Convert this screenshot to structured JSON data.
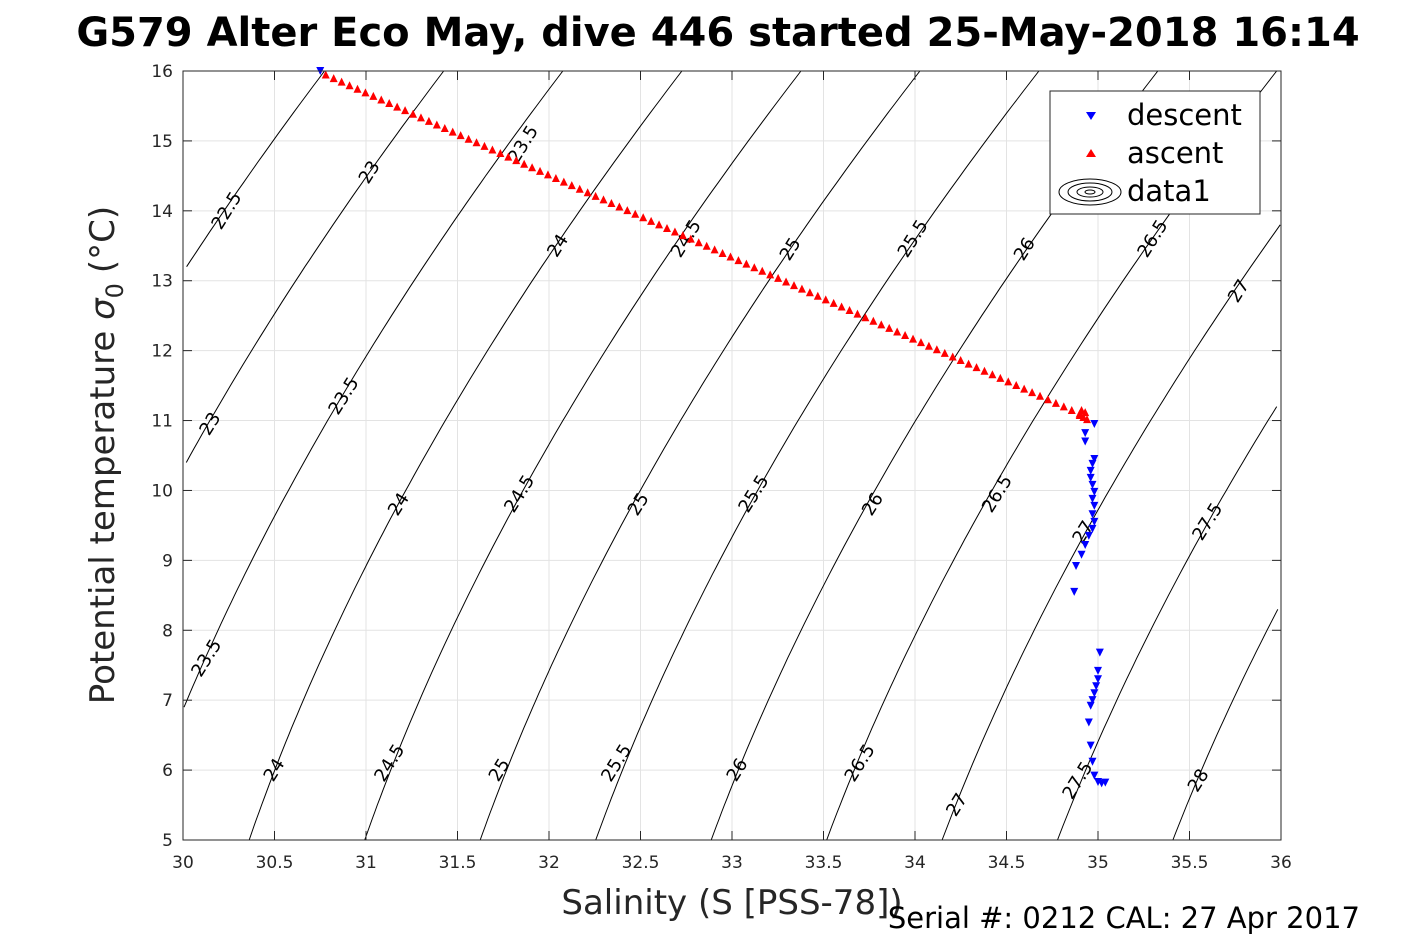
{
  "chart_data": {
    "type": "scatter",
    "title": "G579 Alter Eco May, dive 446 started 25-May-2018 16:14",
    "xlabel": "Salinity (S [PSS-78])",
    "ylabel": "Potential temperature σ₀ (°C)",
    "ylabel_main": "Potential temperature",
    "ylabel_symbol": "σ",
    "ylabel_sub": "0",
    "ylabel_unit": "(°C)",
    "xlim": [
      30,
      36
    ],
    "ylim": [
      5,
      16
    ],
    "xticks": [
      30,
      30.5,
      31,
      31.5,
      32,
      32.5,
      33,
      33.5,
      34,
      34.5,
      35,
      35.5,
      36
    ],
    "xtick_labels": [
      "30",
      "30.5",
      "31",
      "31.5",
      "32",
      "32.5",
      "33",
      "33.5",
      "34",
      "34.5",
      "35",
      "35.5",
      "36"
    ],
    "yticks": [
      5,
      6,
      7,
      8,
      9,
      10,
      11,
      12,
      13,
      14,
      15,
      16
    ],
    "ytick_labels": [
      "5",
      "6",
      "7",
      "8",
      "9",
      "10",
      "11",
      "12",
      "13",
      "14",
      "15",
      "16"
    ],
    "grid": true,
    "legend_placement": "top-right",
    "legend": [
      "descent",
      "ascent",
      "data1"
    ],
    "footer": "Serial #: 0212  CAL: 27 Apr 2017",
    "series": [
      {
        "name": "descent",
        "marker": "triangle-down",
        "color": "#0000ff",
        "points": [
          [
            30.75,
            16.0
          ],
          [
            34.98,
            10.95
          ],
          [
            34.93,
            10.82
          ],
          [
            34.93,
            10.7
          ],
          [
            34.98,
            10.45
          ],
          [
            34.97,
            10.38
          ],
          [
            34.96,
            10.28
          ],
          [
            34.96,
            10.18
          ],
          [
            34.97,
            10.08
          ],
          [
            34.98,
            9.98
          ],
          [
            34.97,
            9.88
          ],
          [
            34.98,
            9.78
          ],
          [
            34.97,
            9.66
          ],
          [
            34.98,
            9.55
          ],
          [
            34.97,
            9.45
          ],
          [
            34.95,
            9.35
          ],
          [
            34.93,
            9.22
          ],
          [
            34.91,
            9.08
          ],
          [
            34.88,
            8.92
          ],
          [
            34.87,
            8.55
          ],
          [
            35.01,
            7.68
          ],
          [
            35.0,
            7.42
          ],
          [
            35.0,
            7.3
          ],
          [
            34.99,
            7.2
          ],
          [
            34.98,
            7.1
          ],
          [
            34.97,
            7.0
          ],
          [
            34.96,
            6.92
          ],
          [
            34.95,
            6.68
          ],
          [
            34.96,
            6.35
          ],
          [
            34.97,
            6.12
          ],
          [
            34.98,
            5.92
          ],
          [
            35.0,
            5.83
          ],
          [
            35.02,
            5.81
          ],
          [
            35.04,
            5.82
          ]
        ]
      },
      {
        "name": "ascent",
        "marker": "triangle-up",
        "color": "#ff0000",
        "start": [
          30.78,
          15.95
        ],
        "end": [
          34.9,
          11.1
        ],
        "cluster": [
          [
            34.9,
            11.08
          ],
          [
            34.92,
            11.05
          ],
          [
            34.94,
            11.02
          ],
          [
            34.93,
            11.12
          ],
          [
            34.91,
            11.15
          ]
        ]
      }
    ],
    "contour_lines": [
      22.5,
      23,
      23.5,
      24,
      24.5,
      25,
      25.5,
      26,
      26.5,
      27,
      27.5,
      28
    ],
    "contour_labels": [
      {
        "text": "22.5",
        "s": 30.24,
        "t": 14.0
      },
      {
        "text": "23",
        "s": 31.02,
        "t": 14.55
      },
      {
        "text": "23.5",
        "s": 31.86,
        "t": 14.95
      },
      {
        "text": "24",
        "s": 32.05,
        "t": 13.5
      },
      {
        "text": "24.5",
        "s": 32.75,
        "t": 13.6
      },
      {
        "text": "25",
        "s": 33.32,
        "t": 13.45
      },
      {
        "text": "25.5",
        "s": 33.99,
        "t": 13.6
      },
      {
        "text": "26",
        "s": 34.6,
        "t": 13.45
      },
      {
        "text": "26.5",
        "s": 35.3,
        "t": 13.6
      },
      {
        "text": "27",
        "s": 35.77,
        "t": 12.85
      },
      {
        "text": "23",
        "s": 30.15,
        "t": 10.95
      },
      {
        "text": "23.5",
        "s": 30.88,
        "t": 11.35
      },
      {
        "text": "24",
        "s": 31.18,
        "t": 9.8
      },
      {
        "text": "24.5",
        "s": 31.84,
        "t": 9.95
      },
      {
        "text": "25",
        "s": 32.49,
        "t": 9.8
      },
      {
        "text": "25.5",
        "s": 33.12,
        "t": 9.95
      },
      {
        "text": "26",
        "s": 33.77,
        "t": 9.8
      },
      {
        "text": "26.5",
        "s": 34.45,
        "t": 9.95
      },
      {
        "text": "27",
        "s": 34.92,
        "t": 9.4
      },
      {
        "text": "27.5",
        "s": 35.6,
        "t": 9.55
      },
      {
        "text": "23.5",
        "s": 30.13,
        "t": 7.6
      },
      {
        "text": "24",
        "s": 30.5,
        "t": 6.0
      },
      {
        "text": "24.5",
        "s": 31.13,
        "t": 6.1
      },
      {
        "text": "25",
        "s": 31.73,
        "t": 6.0
      },
      {
        "text": "25.5",
        "s": 32.37,
        "t": 6.1
      },
      {
        "text": "26",
        "s": 33.03,
        "t": 6.0
      },
      {
        "text": "26.5",
        "s": 33.7,
        "t": 6.1
      },
      {
        "text": "27",
        "s": 34.23,
        "t": 5.5
      },
      {
        "text": "27.5",
        "s": 34.89,
        "t": 5.85
      },
      {
        "text": "28",
        "s": 35.55,
        "t": 5.85
      }
    ]
  }
}
